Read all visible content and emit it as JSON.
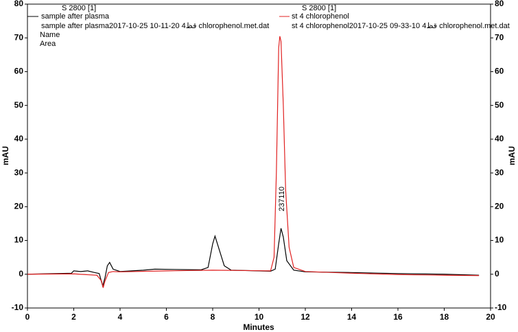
{
  "chart_data": {
    "type": "line",
    "xlabel": "Minutes",
    "ylabel": "mAU",
    "y2label": "mAU",
    "xlim": [
      0,
      20
    ],
    "xticks": [
      0,
      2,
      4,
      6,
      8,
      10,
      12,
      14,
      16,
      18,
      20
    ],
    "ylim": [
      -10,
      80
    ],
    "yticks": [
      -10,
      0,
      10,
      20,
      30,
      40,
      50,
      60,
      70,
      80
    ],
    "y2lim": [
      -10,
      80
    ],
    "y2ticks": [
      -10,
      0,
      10,
      20,
      30,
      40,
      50,
      60,
      70,
      80
    ],
    "legends": [
      {
        "detector": "S 2800 [1]",
        "file": "sample after plasma2017-10-25 10-11-20 قظ4 chlorophenol.met.dat",
        "fields": [
          "Name",
          "Area"
        ]
      },
      {
        "detector": "S 2800 [1]",
        "file": "st 4 chlorophenol2017-10-25 09-33-10 قظ4 chlorophenol.met.dat"
      }
    ],
    "annotation": "237110",
    "series": [
      {
        "name": "sample after plasma",
        "color": "#000000",
        "x": [
          0,
          1.9,
          2.0,
          2.3,
          2.6,
          2.9,
          3.1,
          3.25,
          3.35,
          3.45,
          3.55,
          3.7,
          4.0,
          5,
          5.5,
          7.5,
          7.8,
          8.0,
          8.1,
          8.25,
          8.5,
          8.8,
          10.5,
          10.7,
          10.85,
          10.95,
          11.05,
          11.2,
          11.5,
          12,
          14,
          16,
          18,
          19.5
        ],
        "values": [
          0,
          0.3,
          1.0,
          0.8,
          1.0,
          0.5,
          0.2,
          -3.5,
          -1,
          2.5,
          3.5,
          1.5,
          0.8,
          1.2,
          1.5,
          1.3,
          2,
          9,
          11.3,
          8,
          2.5,
          1.2,
          0.9,
          1.5,
          9,
          13.6,
          11,
          4,
          1.2,
          0.7,
          0.5,
          0.2,
          0,
          -0.3
        ]
      },
      {
        "name": "st 4 chlorophenol",
        "color": "#e02020",
        "x": [
          0,
          2,
          3,
          3.2,
          3.27,
          3.35,
          3.5,
          3.7,
          4,
          6,
          8,
          10.5,
          10.65,
          10.75,
          10.85,
          10.9,
          10.95,
          11.05,
          11.15,
          11.3,
          11.5,
          12,
          14,
          16,
          18,
          19.5
        ],
        "values": [
          0,
          0.1,
          -0.3,
          -2,
          -4,
          -2,
          0.5,
          0.8,
          0.7,
          1.0,
          1.2,
          1.0,
          5,
          30,
          67,
          70.5,
          69,
          50,
          25,
          8,
          2,
          0.8,
          0.3,
          -0.1,
          -0.3,
          -0.4
        ]
      }
    ]
  }
}
